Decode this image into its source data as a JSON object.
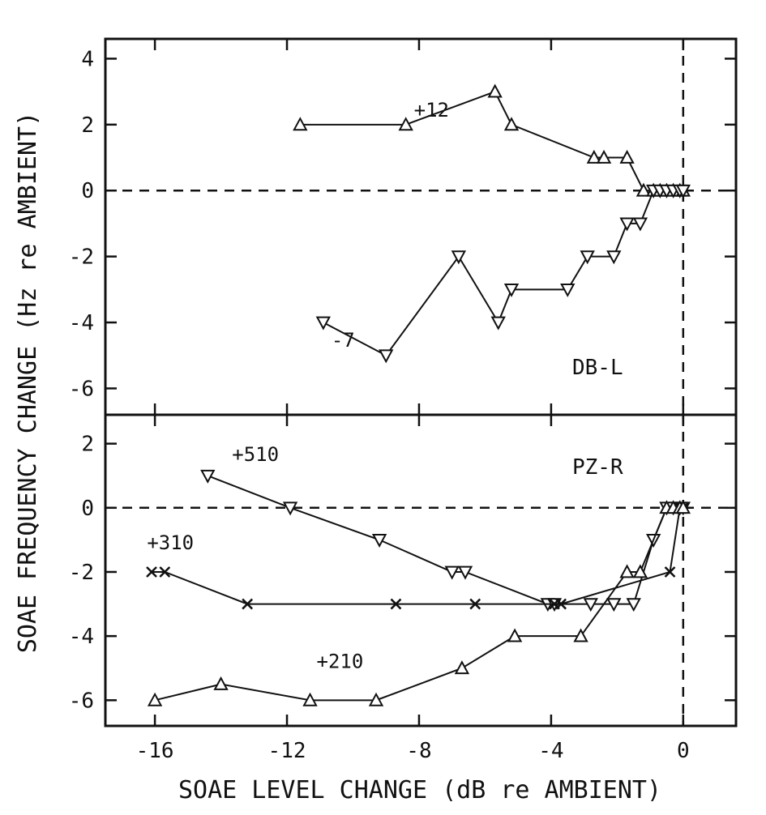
{
  "chart_data": [
    {
      "type": "line",
      "panel_label": "DB-L",
      "ylabel": "SOAE FREQUENCY CHANGE   (Hz re AMBIENT)",
      "xlabel": "SOAE LEVEL CHANGE   (dB re AMBIENT)",
      "xlim": [
        -17.5,
        1.6
      ],
      "ylim": [
        -6.8,
        4.6
      ],
      "xticks": [
        "-16",
        "-12",
        "-8",
        "-4",
        "0"
      ],
      "yticks": [
        "4",
        "2",
        "0",
        "-2",
        "-4",
        "-6"
      ],
      "reference_lines": "dashed lines at x = 0 and y = 0",
      "series": [
        {
          "name": "+12",
          "marker": "triangle-up",
          "x": [
            -11.6,
            -8.4,
            -5.7,
            -5.2,
            -2.7,
            -2.4,
            -1.7,
            -1.2,
            -0.9,
            -0.7,
            -0.5,
            -0.3,
            -0.1,
            0
          ],
          "y": [
            2,
            2,
            3,
            2,
            1,
            1,
            1,
            0,
            0,
            0,
            0,
            0,
            0,
            0
          ]
        },
        {
          "name": "-7",
          "marker": "triangle-down",
          "x": [
            -10.9,
            -9,
            -6.8,
            -5.6,
            -5.2,
            -3.5,
            -2.9,
            -2.1,
            -1.7,
            -1.3,
            -0.9,
            -0.7,
            -0.5,
            -0.3,
            -0.1,
            0
          ],
          "y": [
            -4,
            -5,
            -2,
            -4,
            -3,
            -3,
            -2,
            -2,
            -1,
            -1,
            0,
            0,
            0,
            0,
            0,
            0
          ]
        }
      ]
    },
    {
      "type": "line",
      "panel_label": "PZ-R",
      "xlim": [
        -17.5,
        1.6
      ],
      "ylim": [
        -6.8,
        2.9
      ],
      "xticks": [
        "-16",
        "-12",
        "-8",
        "-4",
        "0"
      ],
      "yticks": [
        "2",
        "0",
        "-2",
        "-4",
        "-6"
      ],
      "reference_lines": "dashed lines at x = 0 and y = 0",
      "series": [
        {
          "name": "+510",
          "marker": "triangle-down",
          "x": [
            -14.4,
            -11.9,
            -9.2,
            -7,
            -6.6,
            -4.1,
            -3.9,
            -2.8,
            -2.1,
            -1.5,
            -0.9,
            -0.5,
            -0.3,
            -0.1,
            0
          ],
          "y": [
            1,
            0,
            -1,
            -2,
            -2,
            -3,
            -3,
            -3,
            -3,
            -3,
            -1,
            0,
            0,
            0,
            0
          ]
        },
        {
          "name": "+310",
          "marker": "x",
          "x": [
            -16.1,
            -15.7,
            -13.2,
            -8.7,
            -6.3,
            -3.9,
            -3.7,
            -0.4,
            -0.1,
            0
          ],
          "y": [
            -2,
            -2,
            -3,
            -3,
            -3,
            -3,
            -3,
            -2,
            0,
            0
          ]
        },
        {
          "name": "+210",
          "marker": "triangle-up",
          "x": [
            -16,
            -14,
            -11.3,
            -9.3,
            -6.7,
            -5.1,
            -3.1,
            -1.7,
            -1.3,
            -0.5,
            -0.3,
            -0.1,
            0
          ],
          "y": [
            -6,
            -5.5,
            -6,
            -6,
            -5,
            -4,
            -4,
            -2,
            -2,
            0,
            0,
            0,
            0
          ]
        }
      ]
    }
  ]
}
